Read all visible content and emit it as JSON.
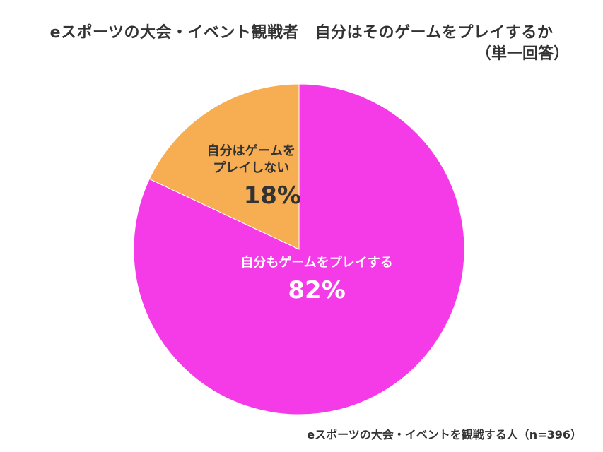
{
  "chart_data": {
    "type": "pie",
    "title": "eスポーツの大会・イベント観戦者　自分はそのゲームをプレイするか",
    "subtitle": "（単一回答）",
    "footnote": "eスポーツの大会・イベントを観戦する人（n=396）",
    "slices": [
      {
        "label_lines": [
          "自分もゲームをプレイする"
        ],
        "value": 82,
        "display": "82%",
        "color": "#f53be8",
        "text_color": "#ffffff"
      },
      {
        "label_lines": [
          "自分はゲームを",
          "プレイしない"
        ],
        "value": 18,
        "display": "18%",
        "color": "#f7ae52",
        "text_color": "#333333"
      }
    ]
  }
}
